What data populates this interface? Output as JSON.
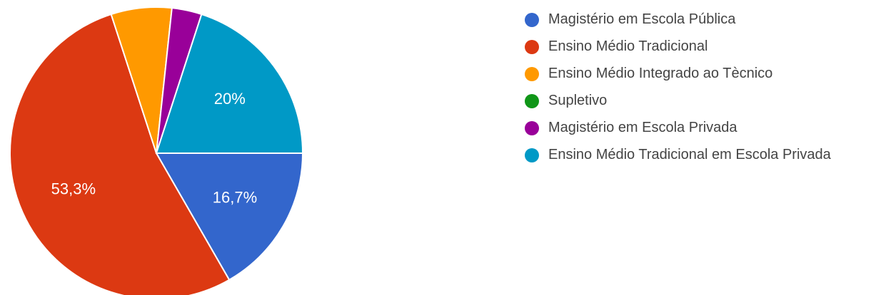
{
  "chart_data": {
    "type": "pie",
    "legend_position": "right",
    "slices": [
      {
        "label": "Magistério em Escola Pública",
        "value": 16.7,
        "color": "#3366cc",
        "data_label": "16,7%"
      },
      {
        "label": "Ensino Médio Tradicional",
        "value": 53.3,
        "color": "#dc3912",
        "data_label": "53,3%"
      },
      {
        "label": "Ensino Médio Integrado ao Tècnico",
        "value": 6.7,
        "color": "#ff9900",
        "data_label": ""
      },
      {
        "label": "Supletivo",
        "value": 0,
        "color": "#109618",
        "data_label": ""
      },
      {
        "label": "Magistério em Escola Privada",
        "value": 3.3,
        "color": "#990099",
        "data_label": ""
      },
      {
        "label": "Ensino Médio Tradicional em Escola Privada",
        "value": 20,
        "color": "#0099c6",
        "data_label": "20%"
      }
    ]
  }
}
